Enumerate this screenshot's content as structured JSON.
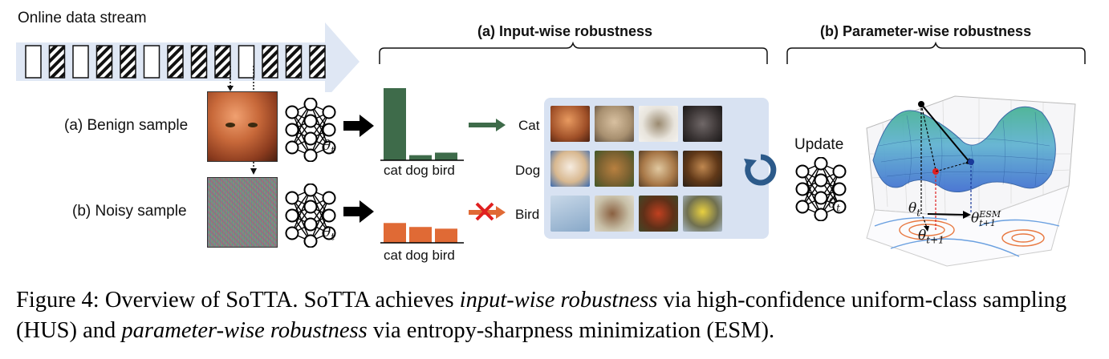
{
  "stream_label": "Online data stream",
  "stream_pattern": [
    "plain",
    "hatched",
    "plain",
    "hatched",
    "hatched",
    "plain",
    "hatched",
    "hatched",
    "hatched",
    "plain",
    "hatched",
    "hatched",
    "hatched"
  ],
  "benign_label": "(a) Benign sample",
  "noisy_label": "(b) Noisy sample",
  "theta_t": "θ",
  "theta_sub_t": "t",
  "input_wise_title": "(a) Input-wise robustness",
  "param_wise_title": "(b) Parameter-wise robustness",
  "bar_chart_axis_label": "cat dog bird",
  "chart_data": [
    {
      "type": "bar",
      "categories": [
        "cat",
        "dog",
        "bird"
      ],
      "values": [
        0.85,
        0.06,
        0.09
      ],
      "color": "#3e6b4a"
    },
    {
      "type": "bar",
      "categories": [
        "cat",
        "dog",
        "bird"
      ],
      "values": [
        0.35,
        0.28,
        0.25
      ],
      "color": "#e06a35"
    }
  ],
  "class_labels": {
    "cat": "Cat",
    "dog": "Dog",
    "bird": "Bird"
  },
  "update_label": "Update",
  "surface_labels": {
    "theta_t": "θt",
    "theta_esm": "θt+1ESM",
    "theta_next": "θt+1"
  },
  "caption": {
    "part1": "Figure 4: Overview of SoTTA. SoTTA achieves ",
    "em1": "input-wise robustness",
    "part2": " via high-confidence uniform-class sampling (HUS) and ",
    "em2": "parameter-wise robustness",
    "part3": " via entropy-sharpness minimization (ESM)."
  },
  "colors": {
    "green": "#3e6b4a",
    "orange": "#e06a35",
    "panel": "#d8e2f2",
    "stream_arrow": "#dfe7f4",
    "refresh": "#2c5a8a",
    "red_x": "#e02020"
  }
}
